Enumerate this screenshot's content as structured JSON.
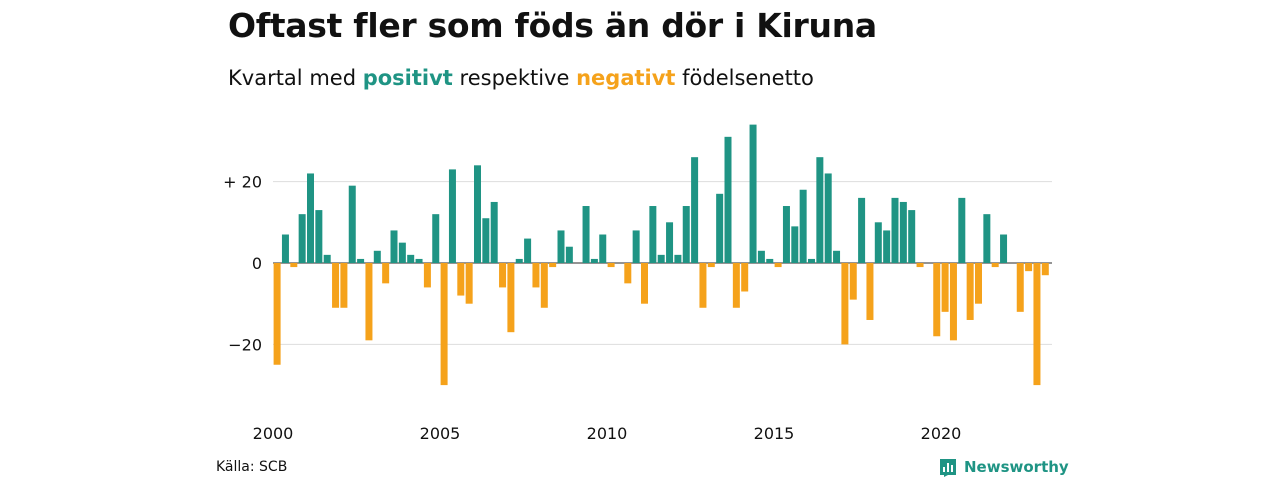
{
  "title": "Oftast fler som föds än dör i Kiruna",
  "subtitle": {
    "prefix": "Kvartal med",
    "positive_word": "positivt",
    "middle": "respektive",
    "negative_word": "negativt",
    "suffix": "födelsenetto"
  },
  "colors": {
    "positive": "#1f9484",
    "negative": "#f5a21b",
    "grid": "#dddddd",
    "text": "#111111"
  },
  "source": "Källa: SCB",
  "brand": {
    "name": "Newsworthy",
    "icon": "newsworthy-logo-icon"
  },
  "chart_data": {
    "type": "bar",
    "title": "Oftast fler som föds än dör i Kiruna",
    "subtitle": "Kvartal med positivt respektive negativt födelsenetto",
    "xlabel": "",
    "ylabel": "",
    "ylim": [
      -32,
      34
    ],
    "y_ticks": [
      {
        "value": 20,
        "label": "+ 20"
      },
      {
        "value": 0,
        "label": "0"
      },
      {
        "value": -20,
        "label": "−20"
      }
    ],
    "x_ticks": [
      {
        "value": 2000,
        "label": "2000"
      },
      {
        "value": 2005,
        "label": "2005"
      },
      {
        "value": 2010,
        "label": "2010"
      },
      {
        "value": 2015,
        "label": "2015"
      },
      {
        "value": 2020,
        "label": "2020"
      }
    ],
    "x_start": 2000.0,
    "period": "quarter",
    "grid": true,
    "values": [
      -25,
      7,
      -1,
      12,
      22,
      13,
      2,
      -11,
      -11,
      19,
      1,
      -19,
      3,
      -5,
      8,
      5,
      2,
      1,
      -6,
      12,
      -30,
      23,
      -8,
      -10,
      24,
      11,
      15,
      -6,
      -17,
      1,
      6,
      -6,
      -11,
      -1,
      8,
      4,
      0,
      14,
      1,
      7,
      -1,
      0,
      -5,
      8,
      -10,
      14,
      2,
      10,
      2,
      14,
      26,
      -11,
      -1,
      17,
      31,
      -11,
      -7,
      34,
      3,
      1,
      -1,
      14,
      9,
      18,
      1,
      26,
      22,
      3,
      -20,
      -9,
      16,
      -14,
      10,
      8,
      16,
      15,
      13,
      -1,
      0,
      -18,
      -12,
      -19,
      16,
      -14,
      -10,
      12,
      -1,
      7,
      0,
      -12,
      -2,
      -30,
      -3
    ]
  }
}
